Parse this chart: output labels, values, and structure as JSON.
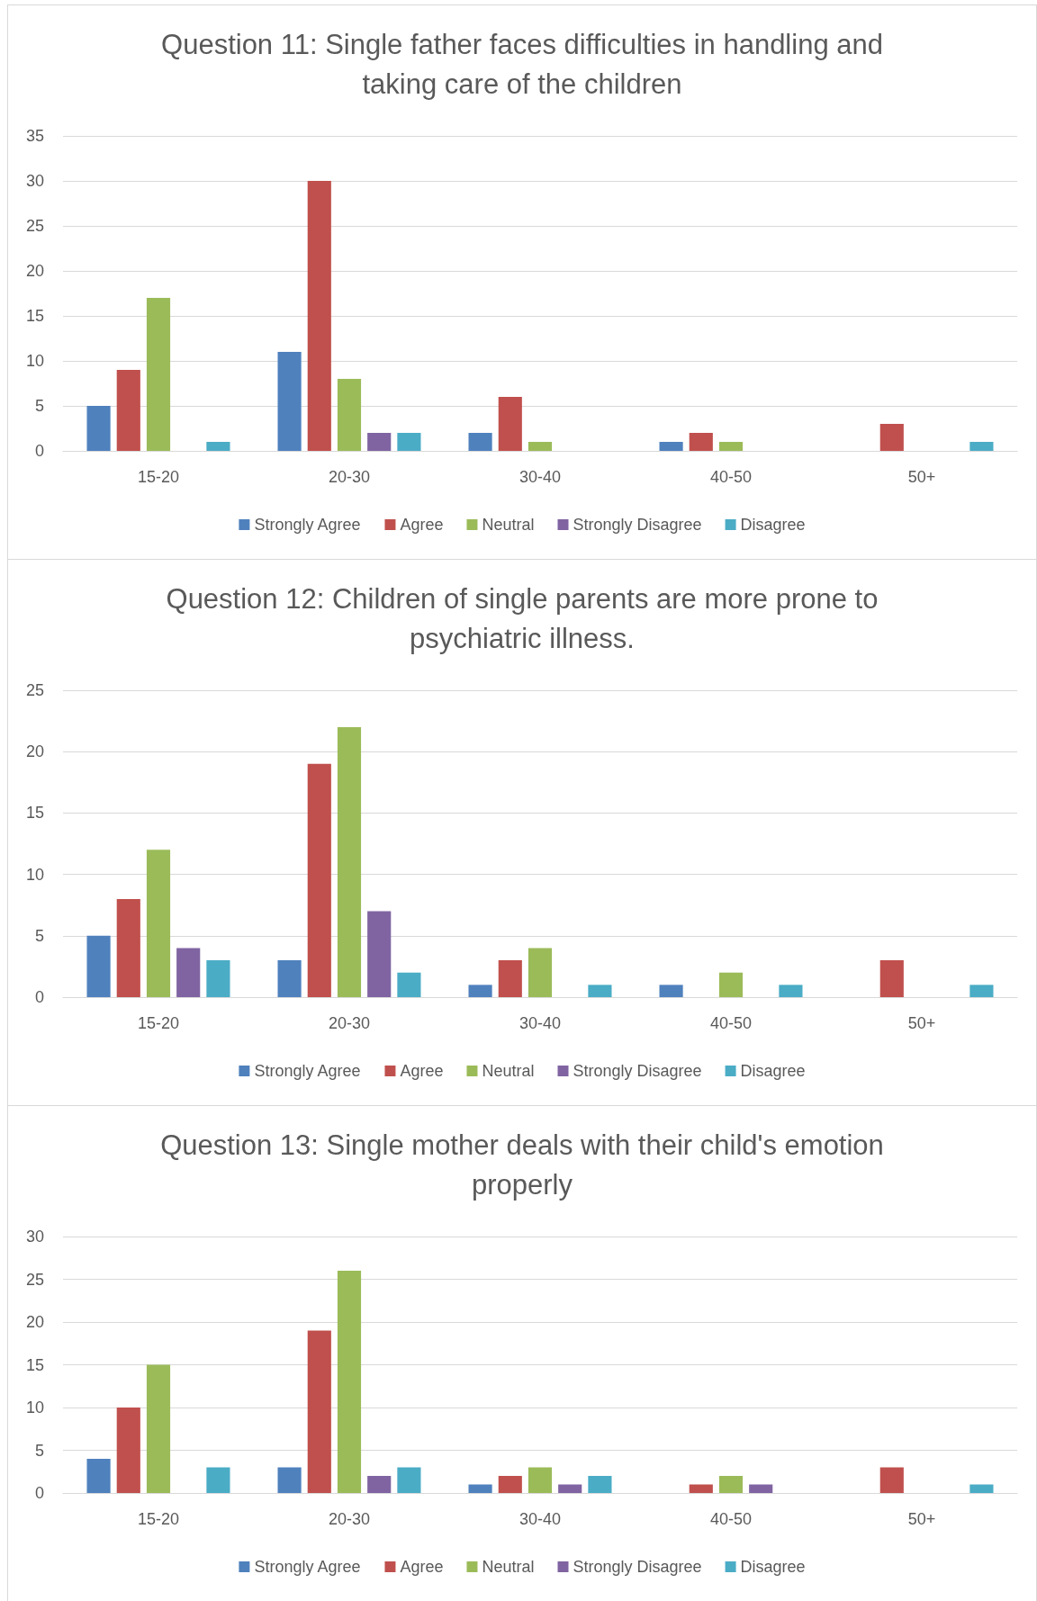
{
  "chart_data": [
    {
      "type": "bar",
      "title": "Question 11: Single father faces difficulties in handling and taking care of the children",
      "categories": [
        "15-20",
        "20-30",
        "30-40",
        "40-50",
        "50+"
      ],
      "series": [
        {
          "name": "Strongly Agree",
          "color": "#4f81bd",
          "values": [
            5,
            11,
            2,
            1,
            null
          ]
        },
        {
          "name": "Agree",
          "color": "#c0504d",
          "values": [
            9,
            30,
            6,
            2,
            3
          ]
        },
        {
          "name": "Neutral",
          "color": "#9bbb59",
          "values": [
            17,
            8,
            1,
            1,
            null
          ]
        },
        {
          "name": "Strongly Disagree",
          "color": "#8064a2",
          "values": [
            null,
            2,
            null,
            null,
            null
          ]
        },
        {
          "name": "Disagree",
          "color": "#4bacc6",
          "values": [
            1,
            2,
            null,
            null,
            1
          ]
        }
      ],
      "ylim": [
        0,
        35
      ],
      "yticks": [
        0,
        5,
        10,
        15,
        20,
        25,
        30,
        35
      ],
      "grid": "y",
      "legend": "bottom"
    },
    {
      "type": "bar",
      "title": "Question 12: Children of single parents are more prone to psychiatric illness.",
      "categories": [
        "15-20",
        "20-30",
        "30-40",
        "40-50",
        "50+"
      ],
      "series": [
        {
          "name": "Strongly Agree",
          "color": "#4f81bd",
          "values": [
            5,
            3,
            1,
            1,
            null
          ]
        },
        {
          "name": "Agree",
          "color": "#c0504d",
          "values": [
            8,
            19,
            3,
            null,
            3
          ]
        },
        {
          "name": "Neutral",
          "color": "#9bbb59",
          "values": [
            12,
            22,
            4,
            2,
            null
          ]
        },
        {
          "name": "Strongly Disagree",
          "color": "#8064a2",
          "values": [
            4,
            7,
            null,
            null,
            null
          ]
        },
        {
          "name": "Disagree",
          "color": "#4bacc6",
          "values": [
            3,
            2,
            1,
            1,
            1
          ]
        }
      ],
      "ylim": [
        0,
        25
      ],
      "yticks": [
        0,
        5,
        10,
        15,
        20,
        25
      ],
      "grid": "y",
      "legend": "bottom"
    },
    {
      "type": "bar",
      "title": "Question 13: Single mother deals with their child's emotion properly",
      "categories": [
        "15-20",
        "20-30",
        "30-40",
        "40-50",
        "50+"
      ],
      "series": [
        {
          "name": "Strongly Agree",
          "color": "#4f81bd",
          "values": [
            4,
            3,
            1,
            null,
            null
          ]
        },
        {
          "name": "Agree",
          "color": "#c0504d",
          "values": [
            10,
            19,
            2,
            1,
            3
          ]
        },
        {
          "name": "Neutral",
          "color": "#9bbb59",
          "values": [
            15,
            26,
            3,
            2,
            null
          ]
        },
        {
          "name": "Strongly Disagree",
          "color": "#8064a2",
          "values": [
            null,
            2,
            1,
            1,
            null
          ]
        },
        {
          "name": "Disagree",
          "color": "#4bacc6",
          "values": [
            3,
            3,
            2,
            null,
            1
          ]
        }
      ],
      "ylim": [
        0,
        30
      ],
      "yticks": [
        0,
        5,
        10,
        15,
        20,
        25,
        30
      ],
      "grid": "y",
      "legend": "bottom"
    }
  ]
}
